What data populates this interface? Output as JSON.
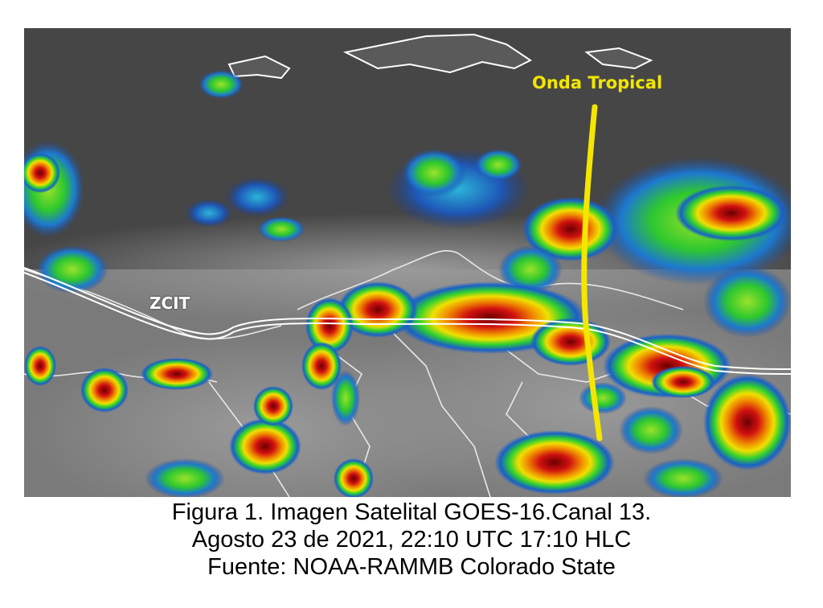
{
  "image": {
    "description_labels": {
      "tropical_wave": "Onda Tropical",
      "itcz": "ZCIT"
    },
    "colors": {
      "tropical_wave_line": "#f4e600",
      "itcz_line": "#ffffff"
    }
  },
  "caption": {
    "line1": "Figura 1. Imagen Satelital GOES-16.Canal 13.",
    "line2": "Agosto 23 de 2021, 22:10 UTC 17:10 HLC",
    "line3": "Fuente: NOAA-RAMMB Colorado State"
  }
}
